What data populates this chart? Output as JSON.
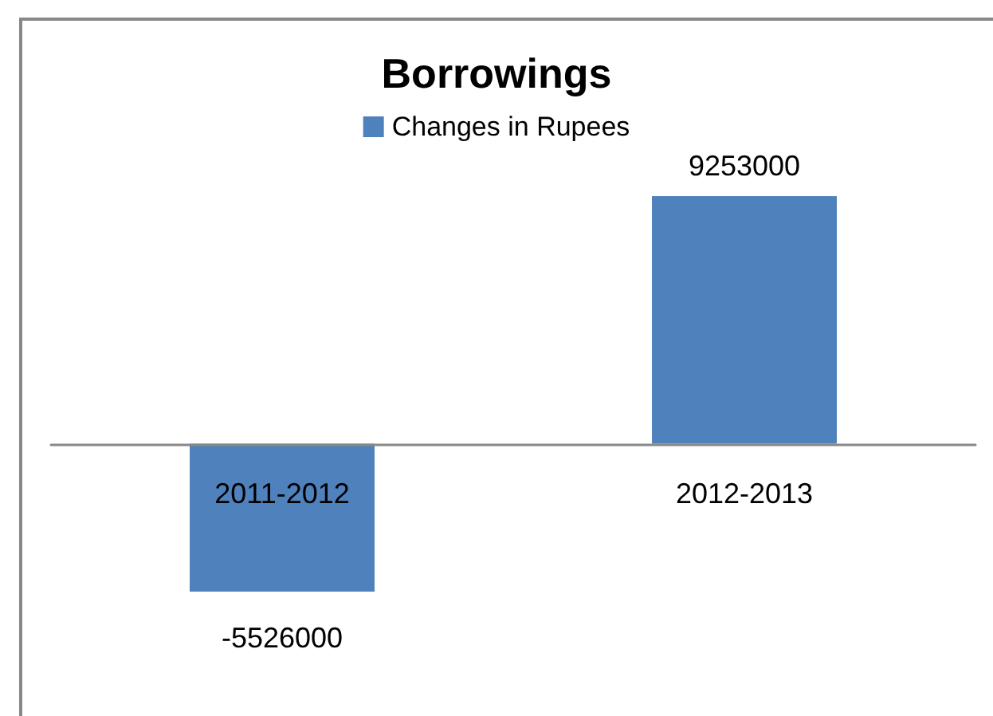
{
  "chart_data": {
    "type": "bar",
    "title": "Borrowings",
    "categories": [
      "2011-2012",
      "2012-2013"
    ],
    "series": [
      {
        "name": "Changes in Rupees",
        "color": "#4f81bd",
        "values": [
          -5526000,
          9253000
        ]
      }
    ],
    "data_labels": true,
    "legend": "top",
    "grid": false
  }
}
